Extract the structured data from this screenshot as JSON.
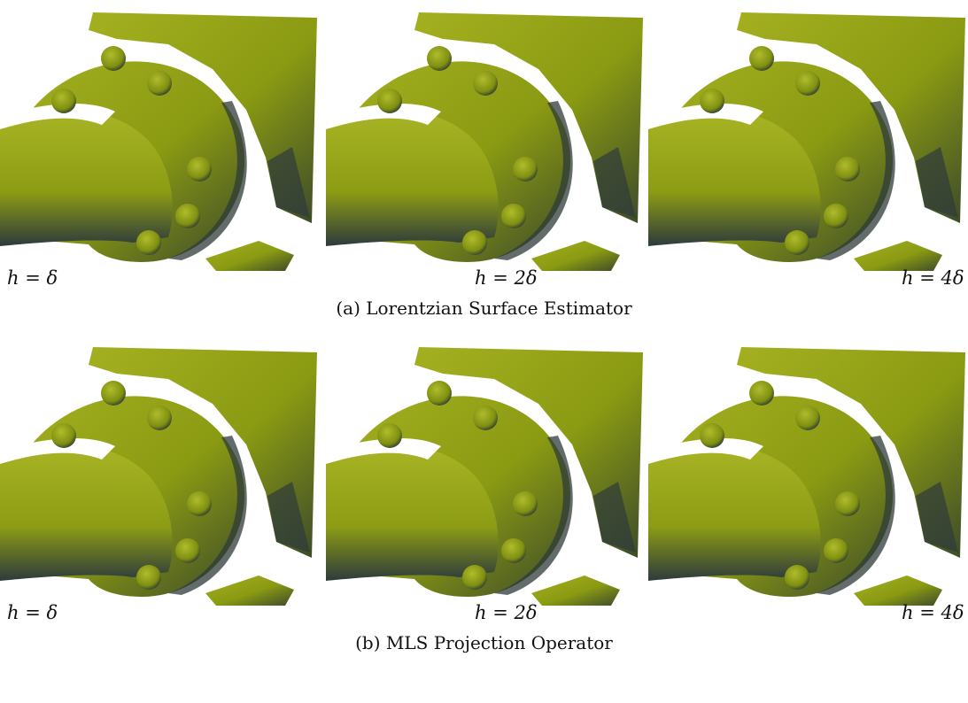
{
  "figure": {
    "rows": [
      {
        "labels": [
          "h = δ",
          "h = 2δ",
          "h = 4δ"
        ],
        "caption": "(a) Lorentzian Surface Estimator"
      },
      {
        "labels": [
          "h = δ",
          "h = 2δ",
          "h = 4δ"
        ],
        "caption": "(b) MLS Projection Operator"
      }
    ]
  }
}
